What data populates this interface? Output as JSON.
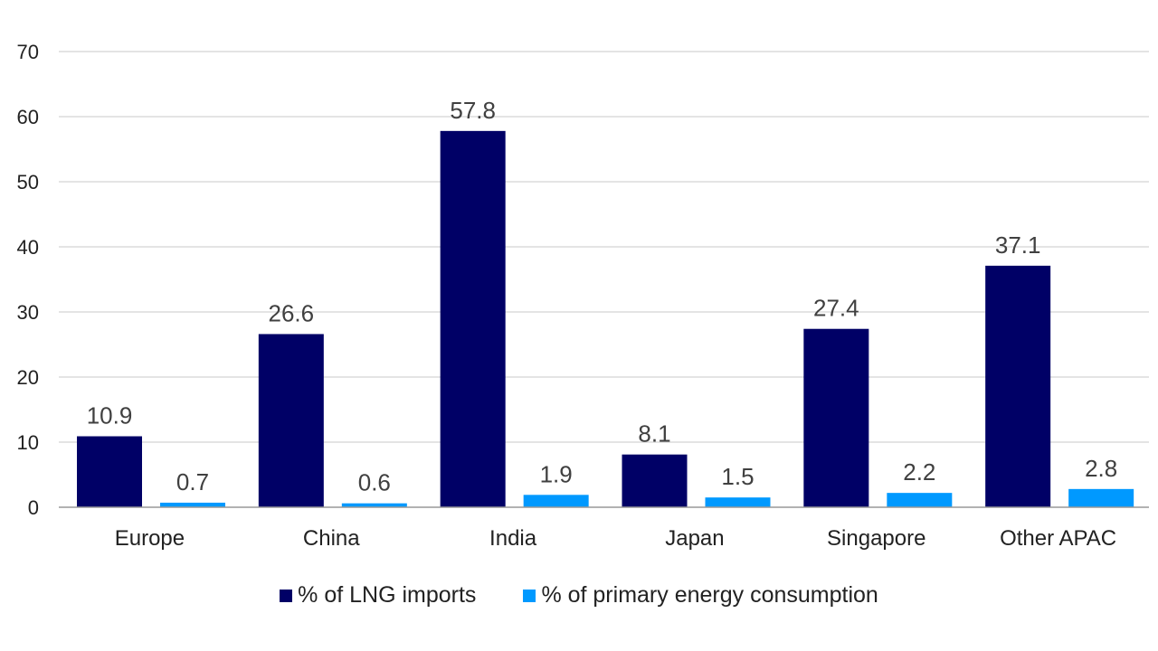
{
  "chart_data": {
    "type": "bar",
    "categories": [
      "Europe",
      "China",
      "India",
      "Japan",
      "Singapore",
      "Other APAC"
    ],
    "series": [
      {
        "name": "% of LNG imports",
        "values": [
          10.9,
          26.6,
          57.8,
          8.1,
          27.4,
          37.1
        ],
        "color": "#000066"
      },
      {
        "name": "% of primary energy consumption",
        "values": [
          0.7,
          0.6,
          1.9,
          1.5,
          2.2,
          2.8
        ],
        "color": "#0099ff"
      }
    ],
    "title": "",
    "xlabel": "",
    "ylabel": "",
    "ylim": [
      0,
      70
    ],
    "yticks": [
      0,
      10,
      20,
      30,
      40,
      50,
      60,
      70
    ],
    "grid": true,
    "legend": "bottom",
    "data_labels": true
  }
}
